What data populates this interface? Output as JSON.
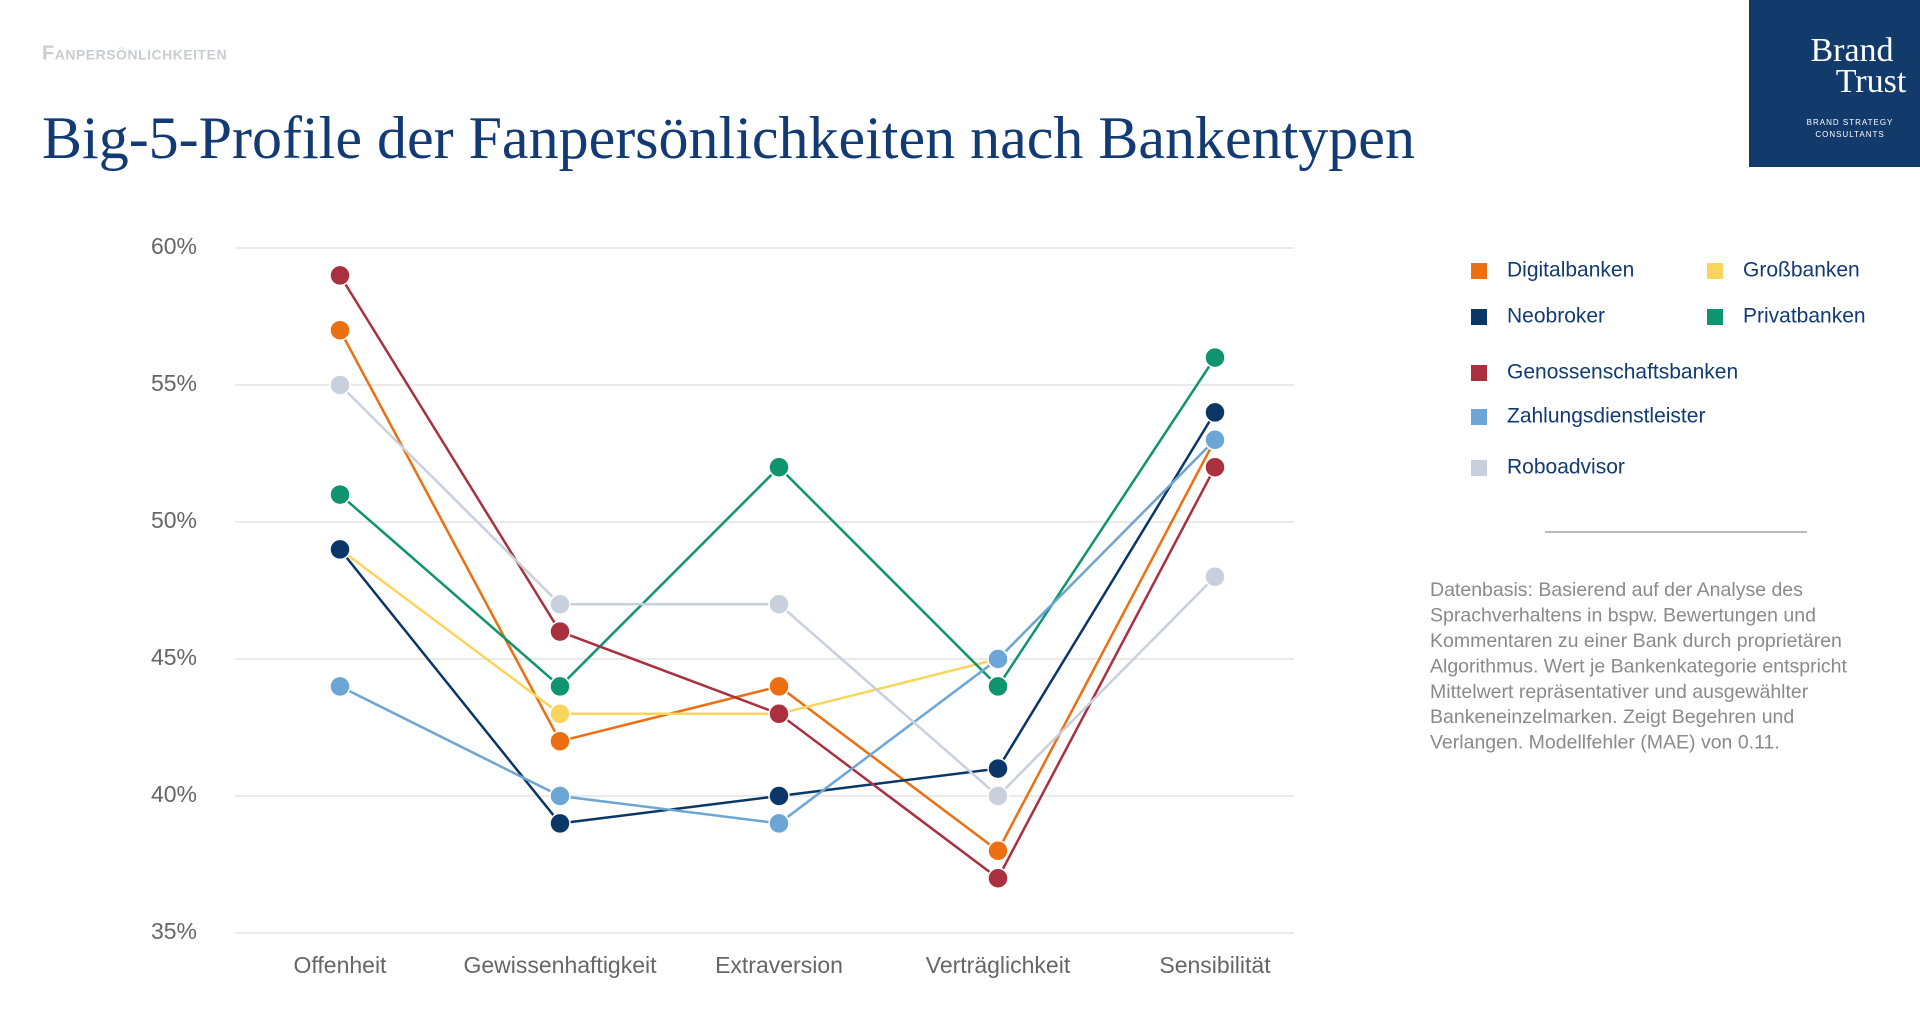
{
  "header": {
    "section": "Fanpersönlichkeiten",
    "logo": [
      "Brand",
      "Trust"
    ],
    "logo_sub": [
      "BRAND STRATEGY",
      "CONSULTANTS"
    ]
  },
  "chart_data": {
    "type": "line",
    "title": "Big-5-Profile der Fanpersönlichkeiten nach Bankentypen",
    "categories": [
      "Offenheit",
      "Gewissenhaftigkeit",
      "Extraversion",
      "Verträglichkeit",
      "Sensibilität"
    ],
    "ylim": [
      35,
      60
    ],
    "yticks": [
      {
        "value": 35,
        "label": "35%"
      },
      {
        "value": 40,
        "label": "40%"
      },
      {
        "value": 45,
        "label": "45%"
      },
      {
        "value": 50,
        "label": "50%"
      },
      {
        "value": 55,
        "label": "55%"
      },
      {
        "value": 60,
        "label": "60%"
      }
    ],
    "grid": true,
    "series": [
      {
        "name": "Digitalbanken",
        "color": "#ec7011",
        "values": [
          57,
          42,
          44,
          38,
          53
        ]
      },
      {
        "name": "Großbanken",
        "color": "#fad55c",
        "values": [
          49,
          43,
          43,
          45,
          53
        ]
      },
      {
        "name": "Neobroker",
        "color": "#0b3668",
        "values": [
          49,
          39,
          40,
          41,
          54
        ]
      },
      {
        "name": "Privatbanken",
        "color": "#0f9470",
        "values": [
          51,
          44,
          52,
          44,
          56
        ]
      },
      {
        "name": "Genossenschaftsbanken",
        "color": "#aa3040",
        "values": [
          59,
          46,
          43,
          37,
          52
        ]
      },
      {
        "name": "Zahlungsdienstleister",
        "color": "#6ca6d6",
        "values": [
          44,
          40,
          39,
          45,
          53
        ]
      },
      {
        "name": "Roboadvisor",
        "color": "#c9d0dd",
        "values": [
          55,
          47,
          47,
          40,
          48
        ]
      }
    ]
  },
  "footnote": [
    "Datenbasis: Basierend auf der Analyse des",
    "Sprachverhaltens in bspw. Bewertungen und",
    "Kommentaren zu einer Bank durch proprietären",
    "Algorithmus. Wert je Bankenkategorie entspricht",
    "Mittelwert repräsentativer und ausgewählter",
    "Bankeneinzelmarken. Zeigt Begehren und",
    "Verlangen. Modellfehler (MAE) von 0.11."
  ]
}
